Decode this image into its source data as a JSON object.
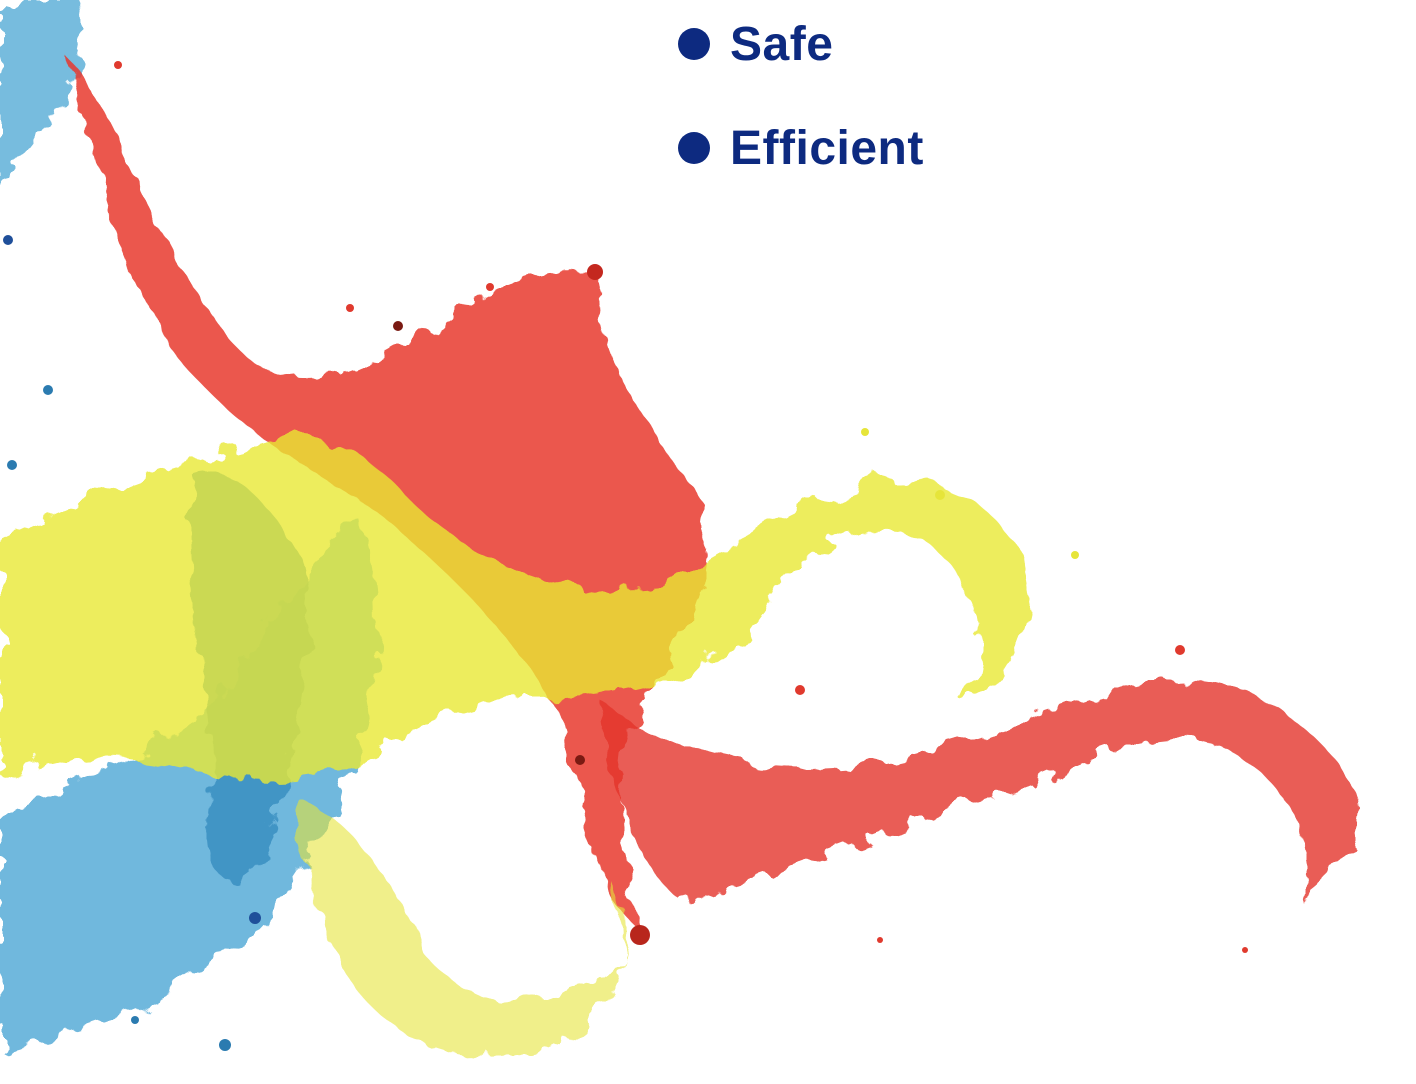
{
  "bullets": [
    "Safe",
    "Efficient"
  ]
}
